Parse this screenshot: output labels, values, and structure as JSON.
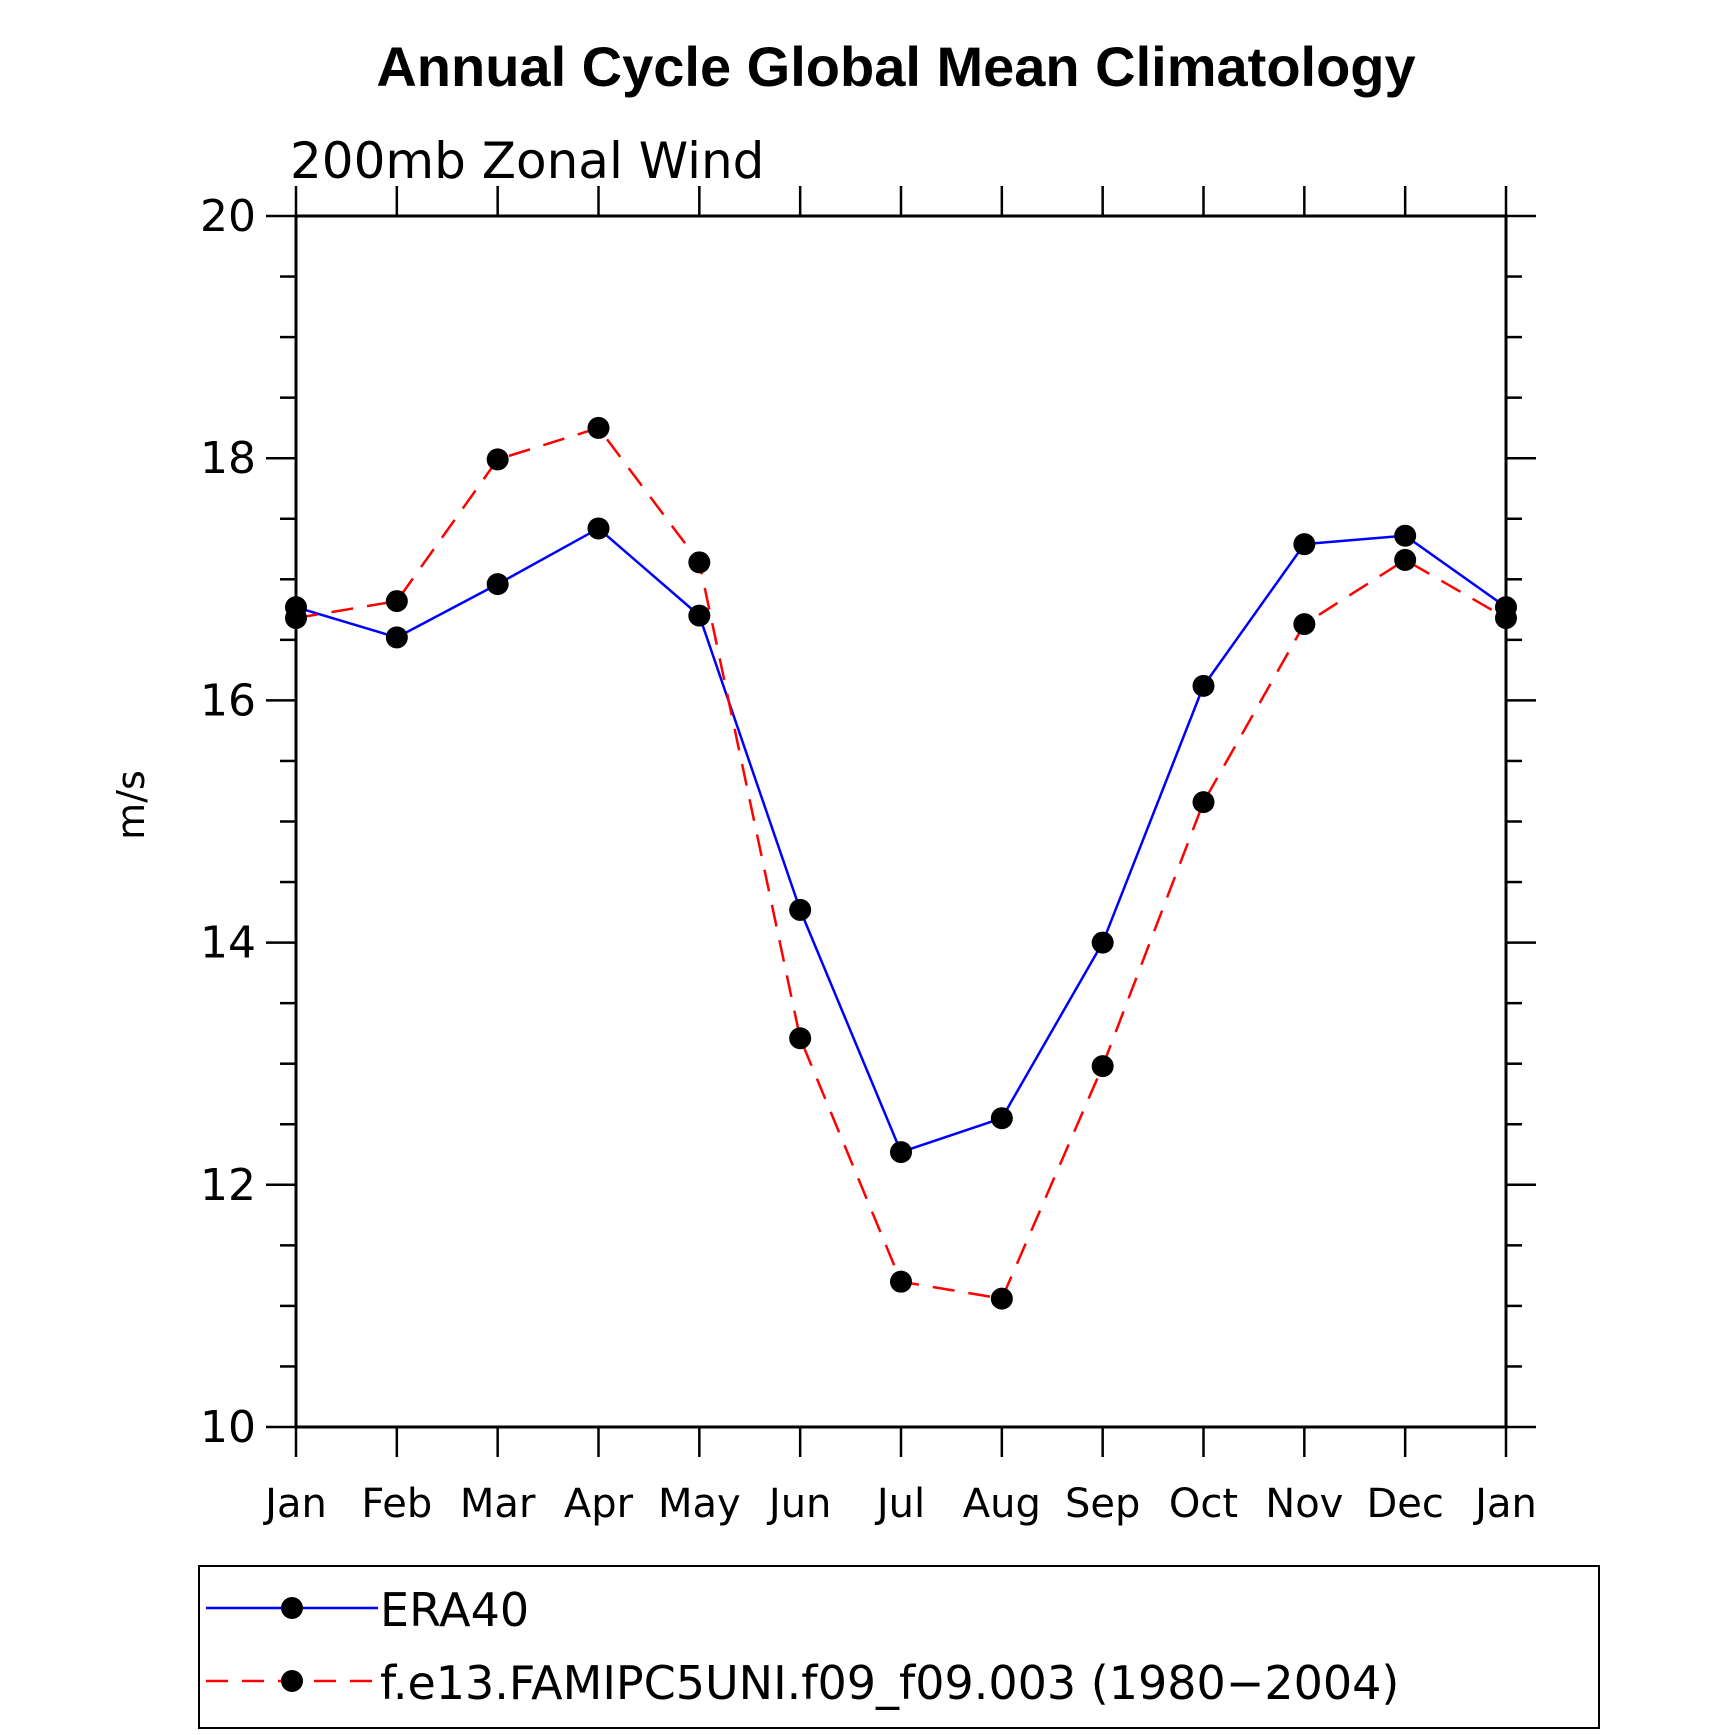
{
  "chart_data": {
    "type": "line",
    "title": "Annual Cycle Global Mean Climatology",
    "subtitle": "200mb Zonal Wind",
    "xlabel": "",
    "ylabel": "m/s",
    "categories": [
      "Jan",
      "Feb",
      "Mar",
      "Apr",
      "May",
      "Jun",
      "Jul",
      "Aug",
      "Sep",
      "Oct",
      "Nov",
      "Dec",
      "Jan"
    ],
    "ylim": [
      10,
      20
    ],
    "yticks": [
      10,
      12,
      14,
      16,
      18,
      20
    ],
    "yminor_step": 0.5,
    "grid": false,
    "legend_position": "bottom",
    "series": [
      {
        "name": "ERA40",
        "color": "#0000ff",
        "dash": "solid",
        "marker": "filled-circle",
        "values": [
          16.77,
          16.52,
          16.96,
          17.42,
          16.7,
          14.27,
          12.27,
          12.55,
          14.0,
          16.12,
          17.29,
          17.36,
          16.77
        ]
      },
      {
        "name": "f.e13.FAMIPC5UNI.f09_f09.003 (1980−2004)",
        "color": "#ff0000",
        "dash": "dashed",
        "marker": "filled-circle",
        "values": [
          16.68,
          16.82,
          17.99,
          18.25,
          17.14,
          13.21,
          11.2,
          11.06,
          12.98,
          15.16,
          16.63,
          17.16,
          16.68
        ]
      }
    ]
  }
}
